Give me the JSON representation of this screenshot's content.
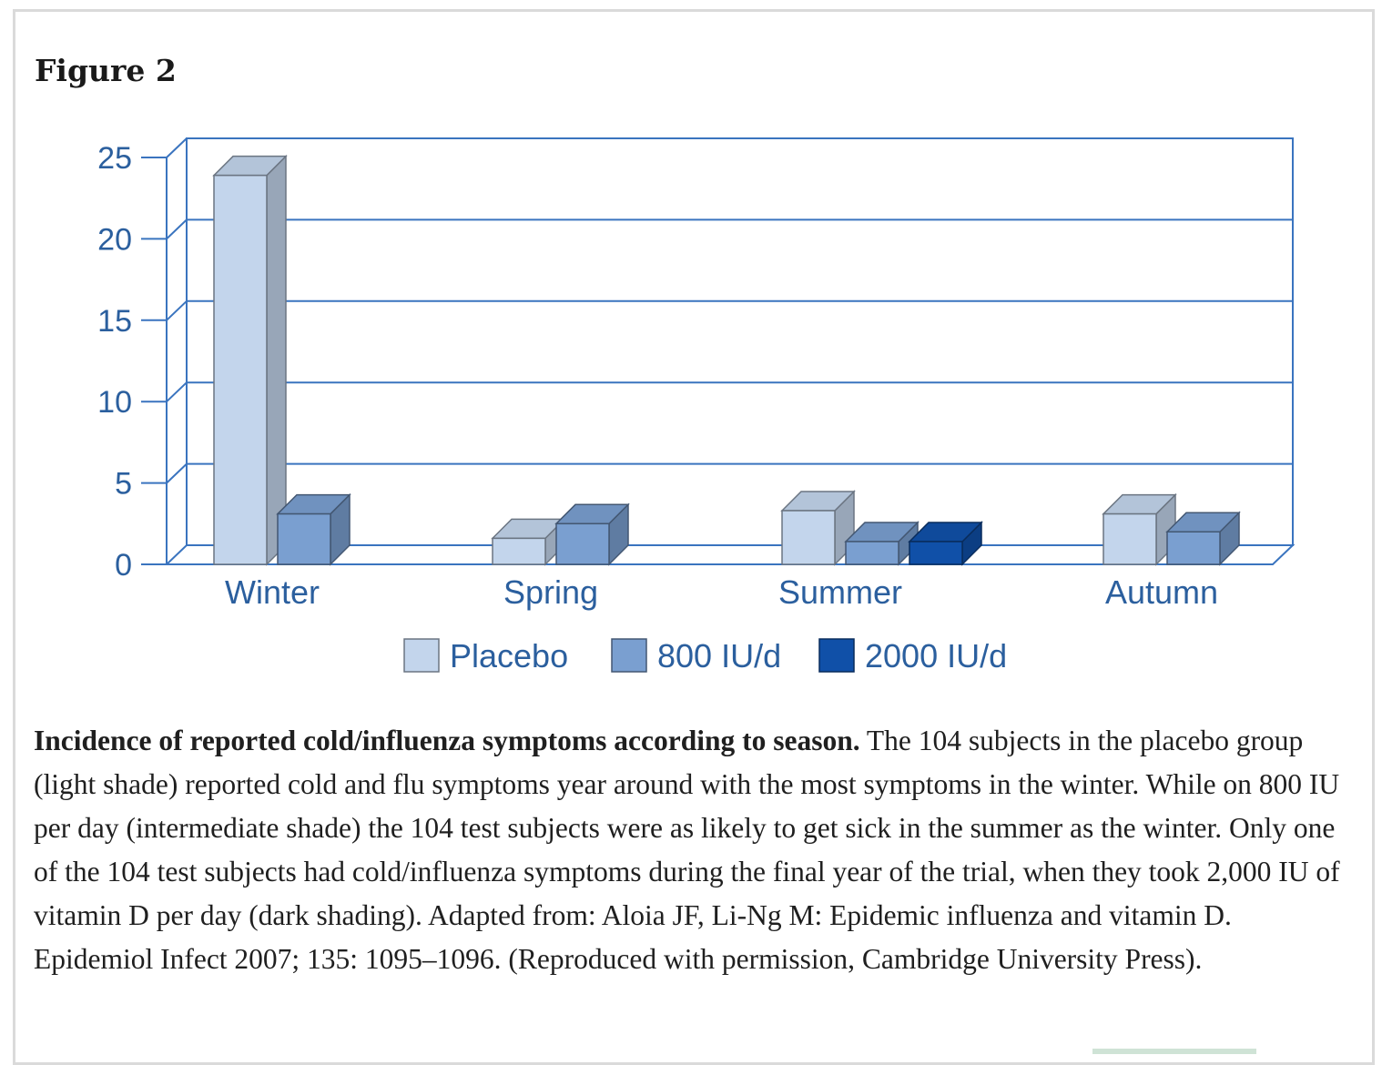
{
  "figure": {
    "title": "Figure 2",
    "caption_bold": "Incidence of reported cold/influenza symptoms according to season.",
    "caption_text": " The 104 subjects in the placebo group (light shade) reported cold and flu symptoms year around with the most symptoms in the winter. While on 800 IU per day (intermediate shade) the 104 test subjects were as likely to get sick in the summer as the winter. Only one of the 104 test subjects had cold/influenza symptoms during the final year of the trial, when they took 2,000 IU of vitamin D per day (dark shading). Adapted from: Aloia JF, Li-Ng M: Epidemic influenza and vitamin D. Epidemiol Infect 2007; 135: 1095–1096. (Reproduced with permission, Cambridge University Press)."
  },
  "chart_data": {
    "type": "bar",
    "title": "",
    "xlabel": "",
    "ylabel": "",
    "categories": [
      "Winter",
      "Spring",
      "Summer",
      "Autumn"
    ],
    "series": [
      {
        "name": "Placebo",
        "values": [
          23.9,
          1.6,
          3.3,
          3.1
        ],
        "color": "#c3d5ec"
      },
      {
        "name": "800 IU/d",
        "values": [
          3.1,
          2.5,
          1.4,
          2.0
        ],
        "color": "#7a9fd0"
      },
      {
        "name": "2000 IU/d",
        "values": [
          null,
          null,
          1.4,
          null
        ],
        "color": "#1050a8"
      }
    ],
    "ylim": [
      0,
      25
    ],
    "yticks": [
      0,
      5,
      10,
      15,
      20,
      25
    ],
    "grid": true,
    "legend": "bottom",
    "style": "3d"
  },
  "colors": {
    "axis": "#3a74bf",
    "axis_text": "#2b5f9e"
  }
}
